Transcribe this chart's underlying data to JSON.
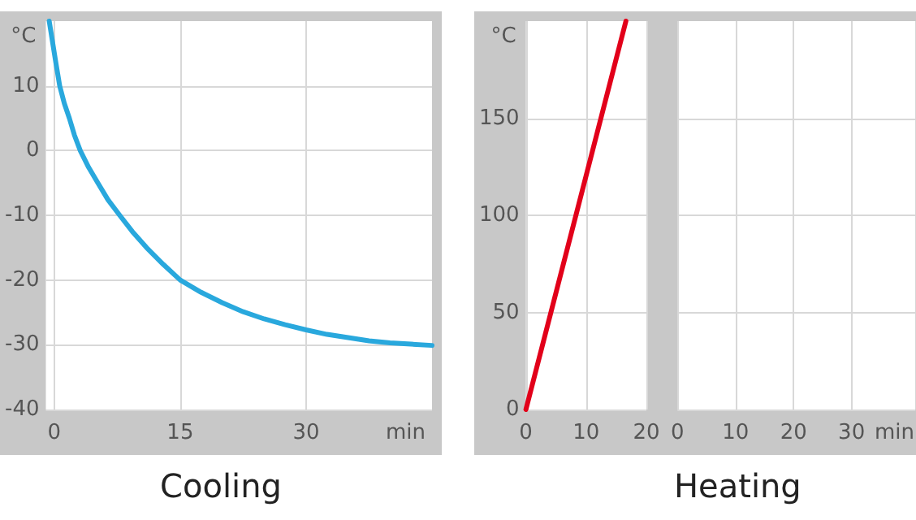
{
  "chart_data": [
    {
      "type": "line",
      "title": "Cooling",
      "xlabel": "min",
      "ylabel": "°C",
      "x": [
        -0.6,
        0.2,
        0.65,
        1.2,
        1.8,
        2.4,
        3.1,
        4.1,
        5.2,
        6.4,
        7.8,
        9.3,
        11,
        13,
        15,
        17.5,
        20,
        22.5,
        25,
        27.5,
        30,
        32.5,
        35,
        37.5,
        40,
        42.5,
        45
      ],
      "series": [
        {
          "color": "#29a8dd",
          "values": [
            20,
            13.5,
            10,
            7.3,
            5,
            2.4,
            0,
            -2.6,
            -5,
            -7.6,
            -10,
            -12.5,
            -15,
            -17.6,
            -20,
            -21.9,
            -23.5,
            -24.9,
            -26,
            -26.9,
            -27.7,
            -28.4,
            -28.9,
            -29.4,
            -29.7,
            -29.9,
            -30.1
          ]
        }
      ],
      "xlim": [
        -1,
        45
      ],
      "xticks": [
        0,
        15,
        30
      ],
      "ylim": [
        -40,
        20
      ],
      "yticks": [
        -40,
        -30,
        -20,
        -10,
        0,
        10
      ],
      "grid": true,
      "marker": "none",
      "line_style": "solid"
    },
    {
      "type": "line",
      "ylabel": "°C",
      "x": [
        0,
        16.6
      ],
      "series": [
        {
          "color": "#e2001a",
          "values": [
            0,
            200
          ]
        }
      ],
      "xlim": [
        0,
        20
      ],
      "xticks": [
        0,
        10,
        20
      ],
      "ylim": [
        0,
        200
      ],
      "yticks": [
        0,
        50,
        100,
        150
      ],
      "grid": true,
      "marker": "none",
      "line_style": "solid"
    },
    {
      "type": "line",
      "title": "Heating",
      "xlabel": "min",
      "xlim": [
        0,
        41
      ],
      "xticks": [
        0,
        10,
        20,
        30
      ],
      "ylim": [
        0,
        200
      ],
      "yticks": [
        0,
        50,
        100,
        150
      ],
      "tick_labels": "x",
      "grid": true
    }
  ]
}
